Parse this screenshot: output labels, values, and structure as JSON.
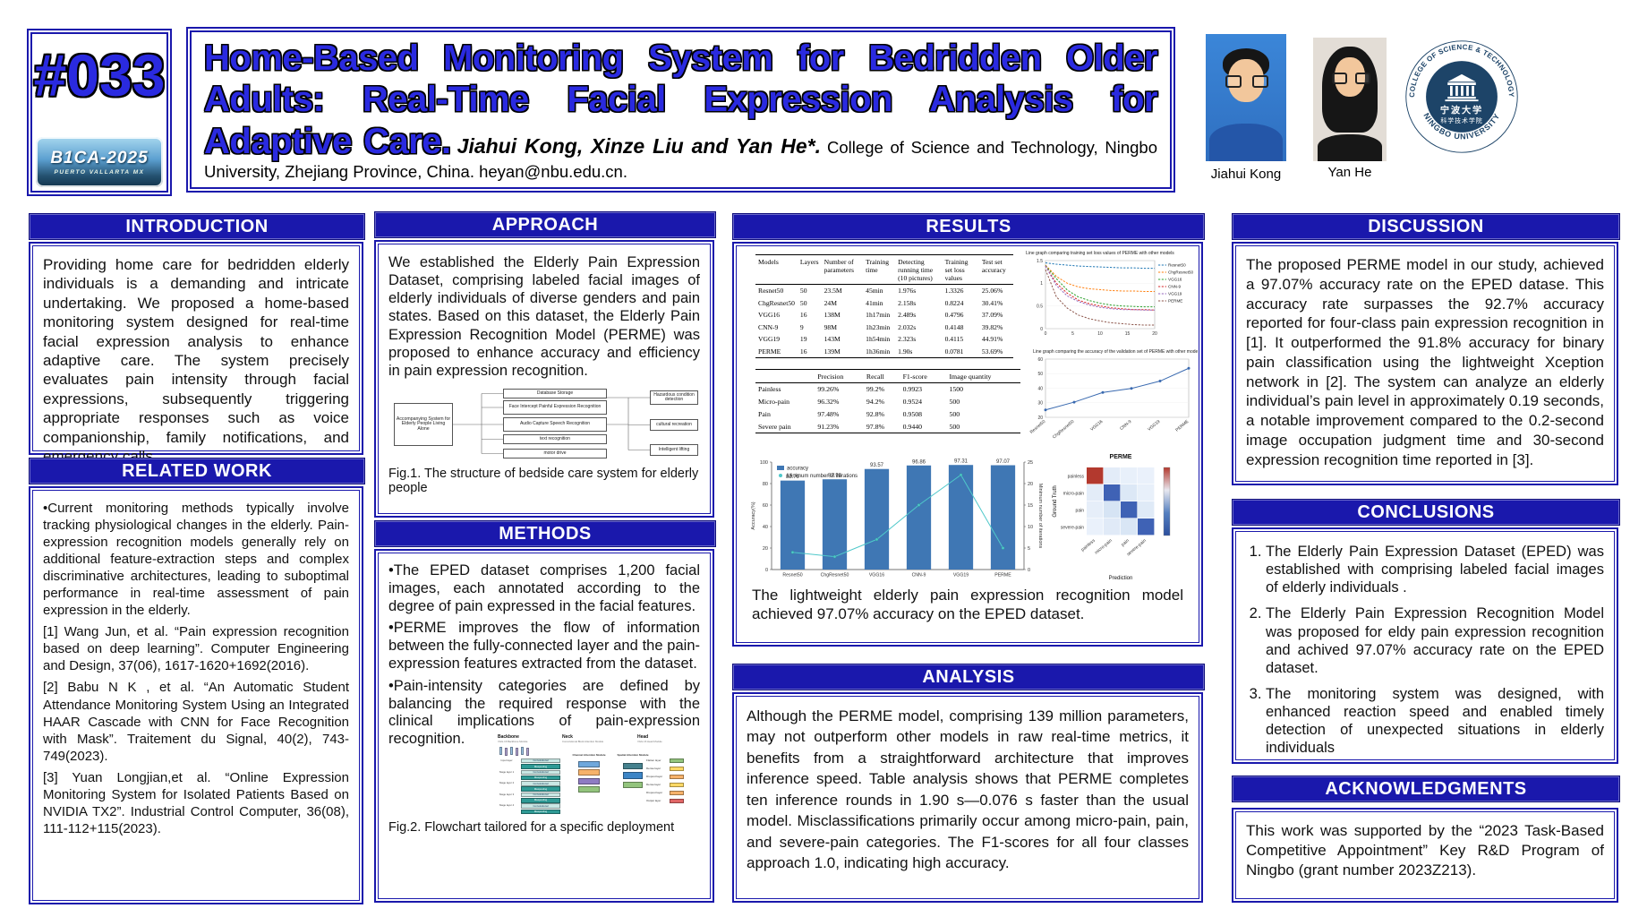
{
  "header": {
    "poster_number": "#033",
    "conference": {
      "name": "B1CA-2025",
      "location": "PUERTO VALLARTA MX"
    },
    "title": "Home-Based Monitoring System for Bedridden Older Adults: Real-Time Facial Expression Analysis for Adaptive Care.",
    "authors": "Jiahui Kong, Xinze Liu and Yan He*.",
    "affiliation": "College of Science and Technology, Ningbo University, Zhejiang Province, China. heyan@nbu.edu.cn.",
    "photos": [
      {
        "label": "Jiahui Kong"
      },
      {
        "label": "Yan He"
      }
    ],
    "university_logo": {
      "arc_top": "COLLEGE OF SCIENCE & TECHNOLOGY",
      "arc_bottom": "NINGBO UNIVERSITY",
      "chinese_line1": "宁波大学",
      "chinese_line2": "科学技术学院"
    }
  },
  "sections": {
    "introduction": {
      "title": "INTRODUCTION",
      "body": "Providing home care for bedridden elderly individuals is a demanding and intricate undertaking. We proposed a home-based monitoring system designed for real-time facial expression analysis to enhance adaptive care. The system precisely evaluates pain intensity through facial expressions, subsequently triggering appropriate responses such as voice companionship, family notifications, and emergency calls."
    },
    "related_work": {
      "title": "RELATED WORK",
      "items": [
        "•Current monitoring methods typically involve tracking physiological changes in the elderly. Pain-expression recognition models generally rely on additional feature-extraction steps and complex discriminative architectures, leading to suboptimal performance in real-time assessment of pain expression in the elderly.",
        "[1] Wang Jun, et al. “Pain expression recognition based on deep learning”. Computer Engineering and Design, 37(06), 1617-1620+1692(2016).",
        "[2] Babu N K , et al. “An Automatic Student Attendance Monitoring System Using an Integrated HAAR Cascade with CNN for Face Recognition with Mask”. Traitement du Signal, 40(2), 743-749(2023).",
        "[3] Yuan Longjian,et al. “Online Expression Monitoring System for Isolated Patients Based on NVIDIA TX2”. Industrial Control Computer, 36(08), 111-112+115(2023)."
      ]
    },
    "approach": {
      "title": "APPROACH",
      "body": "We established the Elderly Pain Expression Dataset, comprising labeled facial images of elderly individuals of diverse genders and pain states. Based on this dataset, the Elderly Pain Expression Recognition Model (PERME) was proposed to enhance accuracy and efficiency in pain expression recognition.",
      "fig1": {
        "left_box": "Accompanying System for Elderly People Living Alone",
        "middle_boxes": [
          "Database Storage",
          "Face Intercept Painful Expression Recognition",
          "Audio Capture Speech Recognition",
          "text recognition",
          "motor drive"
        ],
        "right_boxes": [
          "Hazardous condition detection",
          "cultural recreation",
          "Intelligent lifting"
        ],
        "caption": "Fig.1.  The structure of bedside care system for elderly people"
      }
    },
    "methods": {
      "title": "METHODS",
      "items": [
        "•The EPED dataset comprises 1,200 facial images, each annotated according to the degree of pain expressed in the facial features.",
        "•PERME improves the flow of information between the fully-connected layer and the pain-expression features extracted from the dataset.",
        "•Pain-intensity categories are defined by balancing the required response with the clinical implications of pain-expression recognition."
      ],
      "fig2": {
        "section_labels": [
          {
            "title": "Backbone",
            "sub": "VGG-16 Backbone Module"
          },
          {
            "title": "Neck",
            "sub": "Convolutional Block Attention Module"
          },
          {
            "title": "Head",
            "sub": "VGG-16 Head Module"
          }
        ],
        "stage_labels": [
          "Input layer",
          "Stage layer 1",
          "Stage layer 2",
          "Stage layer 3",
          "Stage layer 4"
        ],
        "left_stack": [
          "Convolutional",
          "Maxpooling",
          "Convolutional",
          "Maxpooling",
          "Convolutional",
          "Maxpooling",
          "Convolutional",
          "Maxpooling",
          "Convolutional",
          "Maxpooling"
        ],
        "module_labels": [
          "Channel Attention Module",
          "Spatial Attention Module"
        ],
        "right_stack": [
          "Flatten layer",
          "Dense layer",
          "Dropout layer",
          "Dense layer",
          "Dropout layer",
          "Output layer"
        ],
        "caption": "Fig.2. Flowchart tailored for a specific deployment"
      }
    },
    "results": {
      "title": "RESULTS",
      "summary": "The lightweight elderly pain expression recognition model achieved 97.07% accuracy on the EPED dataset."
    },
    "analysis": {
      "title": "ANALYSIS",
      "body": "Although the PERME model, comprising 139 million parameters, may not outperform other models in raw real-time metrics, it benefits from a straightforward architecture that improves inference speed. Table analysis shows that PERME completes ten inference rounds in 1.90 s—0.076 s faster than the usual model. Misclassifications primarily occur among micro-pain, pain, and severe-pain categories. The F1-scores for all four classes approach 1.0, indicating high accuracy."
    },
    "discussion": {
      "title": "DISCUSSION",
      "body": "The proposed PERME model in our study, achieved a 97.07% accuracy rate on the EPED datase. This accuracy rate surpasses the 92.7% accuracy reported for four-class pain expression recognition in [1]. It outperformed the 91.8% accuracy for binary pain classification using the lightweight Xception network in [2]. The system can analyze an elderly individual’s pain level in approximately 0.19 seconds, a notable improvement compared to the 0.2-second image occupation judgment time and 30-second expression recognition time reported in [3]."
    },
    "conclusions": {
      "title": "CONCLUSIONS",
      "items": [
        "The Elderly Pain Expression Dataset (EPED) was established  with comprising labeled facial images of elderly individuals .",
        "The Elderly Pain Expression Recognition Model was proposed for eldy pain expression recognition  and achived  97.07% accuracy rate on the EPED dataset.",
        "The monitoring system was designed, with enhanced reaction speed and enabled timely detection of unexpected situations in elderly individuals"
      ]
    },
    "acknowledgments": {
      "title": "ACKNOWLEDGMENTS",
      "body": "This work was supported by the “2023 Task-Based Competitive Appointment” Key R&D Program of Ningbo (grant number 2023Z213)."
    }
  },
  "colors": {
    "accent_blue": "#1a18ac",
    "title_blue": "#2a2ae0",
    "bar_blue": "#3f77b4",
    "line_teal": "#4fc8ca",
    "matrix_red": "#b3392e",
    "matrix_blue": "#3f62b5",
    "logo_navy": "#1d4468"
  },
  "chart_data": [
    {
      "id": "model_comparison",
      "type": "table",
      "columns": [
        "Models",
        "Layers",
        "Number of parameters",
        "Training time",
        "Detecting running time (10 pictures)",
        "Training set loss values",
        "Test set accuracy"
      ],
      "rows": [
        [
          "Resnet50",
          "50",
          "23.5M",
          "45min",
          "1.976s",
          "1.3326",
          "25.06%"
        ],
        [
          "ChgResnet50",
          "50",
          "24M",
          "41min",
          "2.158s",
          "0.8224",
          "30.41%"
        ],
        [
          "VGG16",
          "16",
          "138M",
          "1h17min",
          "2.489s",
          "0.4796",
          "37.09%"
        ],
        [
          "CNN-9",
          "9",
          "98M",
          "1h23min",
          "2.032s",
          "0.4148",
          "39.82%"
        ],
        [
          "VGG19",
          "19",
          "143M",
          "1h54min",
          "2.323s",
          "0.4115",
          "44.91%"
        ],
        [
          "PERME",
          "16",
          "139M",
          "1h36min",
          "1.90s",
          "0.0781",
          "53.69%"
        ]
      ]
    },
    {
      "id": "class_metrics",
      "type": "table",
      "columns": [
        "",
        "Precision",
        "Recall",
        "F1-score",
        "Image quantity"
      ],
      "rows": [
        [
          "Painless",
          "99.26%",
          "99.2%",
          "0.9923",
          "1500"
        ],
        [
          "Micro-pain",
          "96.32%",
          "94.2%",
          "0.9524",
          "500"
        ],
        [
          "Pain",
          "97.48%",
          "92.8%",
          "0.9508",
          "500"
        ],
        [
          "Severe pain",
          "91.23%",
          "97.8%",
          "0.9440",
          "500"
        ]
      ]
    },
    {
      "id": "accuracy_bar",
      "type": "bar",
      "categories": [
        "Resnet50",
        "ChgResnet50",
        "VGG16",
        "CNN-9",
        "VGG19",
        "PERME"
      ],
      "series": [
        {
          "name": "accuracy",
          "kind": "bar",
          "values": [
            82.79,
            83.98,
            93.57,
            96.86,
            97.31,
            97.07
          ],
          "color": "#3f77b4"
        },
        {
          "name": "Minimum number of iterations",
          "kind": "line",
          "values": [
            4,
            3,
            7,
            15,
            22,
            5
          ],
          "color": "#4fc8ca"
        }
      ],
      "ylabel": "Accuracy(%)",
      "y2label": "Minimum number of iterations",
      "ylim": [
        0,
        100
      ],
      "y2lim": [
        0,
        25
      ],
      "y_ticks": [
        0,
        20,
        40,
        60,
        80,
        100
      ],
      "y2_ticks": [
        0,
        5,
        10,
        15,
        20,
        25
      ]
    },
    {
      "id": "training_loss",
      "type": "line",
      "title": "Line graph comparing training set loss values of PERME with other models",
      "ylim": [
        0,
        1.5
      ],
      "y_ticks": [
        0,
        0.5,
        1.0,
        1.5
      ],
      "xlim": [
        0,
        20
      ],
      "x_ticks": [
        0,
        5,
        10,
        15,
        20
      ],
      "legend_right": true,
      "series": [
        {
          "name": "Resnet50",
          "color": "#1f77b4",
          "dashed": true,
          "values": [
            1.45,
            1.42,
            1.4,
            1.38,
            1.37,
            1.36,
            1.35,
            1.34,
            1.34,
            1.33,
            1.33
          ]
        },
        {
          "name": "ChgResnet50",
          "color": "#ff7f0e",
          "dashed": true,
          "values": [
            1.4,
            1.15,
            1.0,
            0.92,
            0.88,
            0.86,
            0.84,
            0.83,
            0.83,
            0.82,
            0.82
          ]
        },
        {
          "name": "VGG16",
          "color": "#2ca02c",
          "dashed": true,
          "values": [
            1.39,
            1.1,
            0.85,
            0.7,
            0.62,
            0.56,
            0.52,
            0.5,
            0.49,
            0.48,
            0.48
          ]
        },
        {
          "name": "CNN-9",
          "color": "#d62728",
          "dashed": true,
          "values": [
            1.38,
            1.0,
            0.78,
            0.63,
            0.55,
            0.5,
            0.46,
            0.44,
            0.42,
            0.42,
            0.41
          ]
        },
        {
          "name": "VGG19",
          "color": "#9467bd",
          "dashed": true,
          "values": [
            1.38,
            0.95,
            0.72,
            0.6,
            0.52,
            0.47,
            0.44,
            0.42,
            0.42,
            0.41,
            0.41
          ]
        },
        {
          "name": "PERME",
          "color": "#8c564b",
          "dashed": true,
          "values": [
            1.3,
            0.7,
            0.45,
            0.3,
            0.22,
            0.17,
            0.13,
            0.11,
            0.09,
            0.08,
            0.08
          ]
        }
      ]
    },
    {
      "id": "validation_accuracy",
      "type": "line",
      "title": "Line graph comparing the accuracy of the validation set of PERME with other models",
      "ylim": [
        20,
        60
      ],
      "y_ticks": [
        20,
        30,
        40,
        50,
        60
      ],
      "categories": [
        "Resnet50",
        "ChgResnet50",
        "VGG16",
        "CNN-9",
        "VGG19",
        "PERME"
      ],
      "series": [
        {
          "name": "Test set accuracy",
          "color": "#3a6ab0",
          "markers": true,
          "values": [
            25.06,
            30.41,
            37.09,
            39.82,
            44.91,
            53.69
          ]
        }
      ]
    },
    {
      "id": "confusion_matrix",
      "type": "heatmap",
      "title": "PERME",
      "xlabel": "Prediction",
      "ylabel": "Ground Truth",
      "classes": [
        "painless",
        "micro-pain",
        "pain",
        "severe-pain"
      ],
      "cell_colors": [
        [
          "#b3392e",
          "#e3ecf8",
          "#e8f0fa",
          "#eaf1fb"
        ],
        [
          "#e3ecf8",
          "#3f62b5",
          "#dce8f6",
          "#e8f0fa"
        ],
        [
          "#e6eef9",
          "#d6e4f4",
          "#3f62b5",
          "#dfeaf7"
        ],
        [
          "#eaf1fb",
          "#e0eaf7",
          "#d9e6f5",
          "#3f62b5"
        ]
      ],
      "colorbar": [
        "#b3392e",
        "#e8e8f0",
        "#5580c0",
        "#2c4f9e"
      ]
    }
  ]
}
